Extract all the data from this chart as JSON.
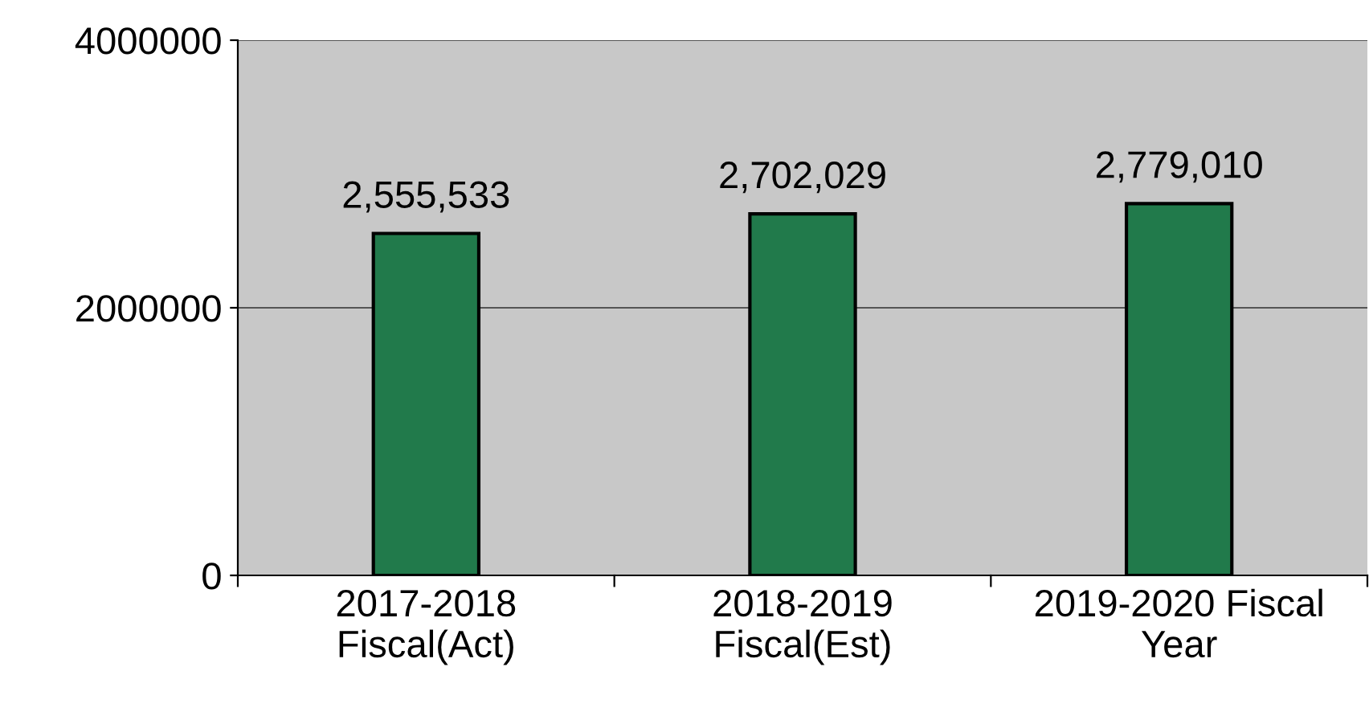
{
  "chart_data": {
    "type": "bar",
    "categories": [
      "2017-2018\nFiscal(Act)",
      "2018-2019\nFiscal(Est)",
      "2019-2020 Fiscal\nYear"
    ],
    "values": [
      2555533,
      2702029,
      2779010
    ],
    "value_labels": [
      "2,555,533",
      "2,702,029",
      "2,779,010"
    ],
    "color": "#217a4b",
    "ylim": [
      0,
      4000000
    ],
    "yticks": [
      0,
      2000000,
      4000000
    ],
    "grid": "y",
    "legend": false
  }
}
